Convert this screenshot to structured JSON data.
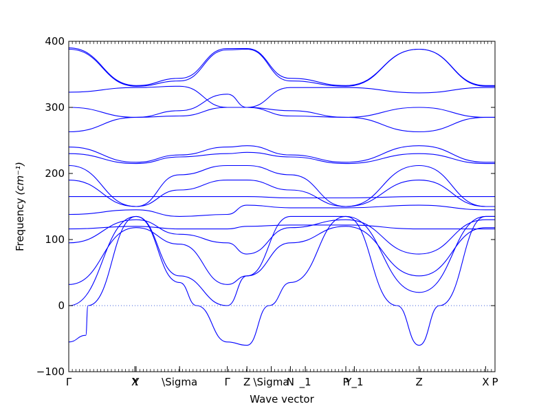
{
  "chart_data": {
    "type": "line",
    "title": "",
    "xlabel": "Wave vector",
    "ylabel": "Frequency",
    "ylabel_unit": "(cm⁻¹)",
    "ylim": [
      -100,
      400
    ],
    "yticks": [
      -100,
      0,
      100,
      200,
      300,
      400
    ],
    "grid": false,
    "zero_line": true,
    "series_color": "#0000ff",
    "high_symmetry_points": [
      {
        "label": "Γ",
        "x": 0.0
      },
      {
        "label": "X",
        "x": 0.155
      },
      {
        "label": "Y",
        "x": 0.158
      },
      {
        "label": "\\Sigma",
        "x": 0.26
      },
      {
        "label": "Γ",
        "x": 0.372
      },
      {
        "label": "Z",
        "x": 0.418
      },
      {
        "label": "\\Sigma",
        "x": 0.475
      },
      {
        "label": "N",
        "x": 0.52
      },
      {
        "label": "_1",
        "x": 0.555
      },
      {
        "label": "P",
        "x": 0.65
      },
      {
        "label": "Y_1",
        "x": 0.67
      },
      {
        "label": "Z",
        "x": 0.822
      },
      {
        "label": "X",
        "x": 0.978
      },
      {
        "label": "P",
        "x": 1.0
      }
    ],
    "segments": [
      [
        0.0,
        0.158
      ],
      [
        0.158,
        0.26
      ],
      [
        0.26,
        0.372
      ],
      [
        0.372,
        0.418
      ],
      [
        0.418,
        0.52
      ],
      [
        0.52,
        0.65
      ],
      [
        0.65,
        0.822
      ],
      [
        0.822,
        0.978
      ],
      [
        0.978,
        1.0
      ]
    ],
    "bands": [
      {
        "name": "b1",
        "values": [
          [
            0.0,
            -55
          ],
          [
            0.04,
            -45
          ],
          [
            0.045,
            0
          ],
          [
            0.158,
            135
          ],
          [
            0.26,
            35
          ],
          [
            0.3,
            0
          ],
          [
            0.372,
            -55
          ],
          [
            0.418,
            -60
          ],
          [
            0.47,
            0
          ],
          [
            0.52,
            35
          ],
          [
            0.65,
            135
          ],
          [
            0.77,
            0
          ],
          [
            0.822,
            -60
          ],
          [
            0.87,
            0
          ],
          [
            0.978,
            135
          ],
          [
            1.0,
            135
          ]
        ]
      },
      {
        "name": "b2",
        "values": [
          [
            0.0,
            0
          ],
          [
            0.158,
            135
          ],
          [
            0.26,
            45
          ],
          [
            0.372,
            0
          ],
          [
            0.418,
            45
          ],
          [
            0.52,
            135
          ],
          [
            0.65,
            135
          ],
          [
            0.822,
            20
          ],
          [
            0.978,
            135
          ],
          [
            1.0,
            135
          ]
        ]
      },
      {
        "name": "b3",
        "values": [
          [
            0.0,
            32
          ],
          [
            0.158,
            118
          ],
          [
            0.26,
            93
          ],
          [
            0.372,
            32
          ],
          [
            0.418,
            45
          ],
          [
            0.52,
            95
          ],
          [
            0.65,
            120
          ],
          [
            0.822,
            45
          ],
          [
            0.978,
            118
          ],
          [
            1.0,
            118
          ]
        ]
      },
      {
        "name": "b4",
        "values": [
          [
            0.0,
            95
          ],
          [
            0.158,
            130
          ],
          [
            0.26,
            108
          ],
          [
            0.372,
            95
          ],
          [
            0.418,
            78
          ],
          [
            0.52,
            118
          ],
          [
            0.65,
            130
          ],
          [
            0.822,
            78
          ],
          [
            0.978,
            130
          ],
          [
            1.0,
            130
          ]
        ]
      },
      {
        "name": "b5",
        "values": [
          [
            0.0,
            116
          ],
          [
            0.158,
            120
          ],
          [
            0.26,
            116
          ],
          [
            0.372,
            116
          ],
          [
            0.418,
            120
          ],
          [
            0.52,
            122
          ],
          [
            0.65,
            122
          ],
          [
            0.822,
            116
          ],
          [
            0.978,
            116
          ],
          [
            1.0,
            116
          ]
        ]
      },
      {
        "name": "b6",
        "values": [
          [
            0.0,
            138
          ],
          [
            0.158,
            145
          ],
          [
            0.26,
            135
          ],
          [
            0.372,
            138
          ],
          [
            0.418,
            152
          ],
          [
            0.52,
            148
          ],
          [
            0.65,
            148
          ],
          [
            0.822,
            152
          ],
          [
            0.978,
            145
          ],
          [
            1.0,
            145
          ]
        ]
      },
      {
        "name": "b7",
        "values": [
          [
            0.0,
            165
          ],
          [
            0.158,
            165
          ],
          [
            0.26,
            165
          ],
          [
            0.372,
            165
          ],
          [
            0.418,
            165
          ],
          [
            0.52,
            163
          ],
          [
            0.65,
            163
          ],
          [
            0.822,
            165
          ],
          [
            0.978,
            165
          ],
          [
            1.0,
            165
          ]
        ]
      },
      {
        "name": "b8",
        "values": [
          [
            0.0,
            190
          ],
          [
            0.158,
            150
          ],
          [
            0.26,
            175
          ],
          [
            0.372,
            190
          ],
          [
            0.418,
            190
          ],
          [
            0.52,
            175
          ],
          [
            0.65,
            150
          ],
          [
            0.822,
            190
          ],
          [
            0.978,
            150
          ],
          [
            1.0,
            150
          ]
        ]
      },
      {
        "name": "b9",
        "values": [
          [
            0.0,
            212
          ],
          [
            0.158,
            150
          ],
          [
            0.26,
            198
          ],
          [
            0.372,
            212
          ],
          [
            0.418,
            212
          ],
          [
            0.52,
            198
          ],
          [
            0.65,
            150
          ],
          [
            0.822,
            212
          ],
          [
            0.978,
            150
          ],
          [
            1.0,
            150
          ]
        ]
      },
      {
        "name": "b10",
        "values": [
          [
            0.0,
            230
          ],
          [
            0.158,
            215
          ],
          [
            0.26,
            225
          ],
          [
            0.372,
            230
          ],
          [
            0.418,
            232
          ],
          [
            0.52,
            225
          ],
          [
            0.65,
            215
          ],
          [
            0.822,
            230
          ],
          [
            0.978,
            215
          ],
          [
            1.0,
            215
          ]
        ]
      },
      {
        "name": "b11",
        "values": [
          [
            0.0,
            240
          ],
          [
            0.158,
            217
          ],
          [
            0.26,
            228
          ],
          [
            0.372,
            240
          ],
          [
            0.418,
            242
          ],
          [
            0.52,
            228
          ],
          [
            0.65,
            217
          ],
          [
            0.822,
            242
          ],
          [
            0.978,
            217
          ],
          [
            1.0,
            217
          ]
        ]
      },
      {
        "name": "b12",
        "values": [
          [
            0.0,
            263
          ],
          [
            0.158,
            285
          ],
          [
            0.26,
            287
          ],
          [
            0.372,
            300
          ],
          [
            0.418,
            300
          ],
          [
            0.52,
            287
          ],
          [
            0.65,
            285
          ],
          [
            0.822,
            263
          ],
          [
            0.978,
            285
          ],
          [
            1.0,
            285
          ]
        ]
      },
      {
        "name": "b13",
        "values": [
          [
            0.0,
            300
          ],
          [
            0.158,
            285
          ],
          [
            0.26,
            295
          ],
          [
            0.372,
            320
          ],
          [
            0.418,
            300
          ],
          [
            0.52,
            295
          ],
          [
            0.65,
            285
          ],
          [
            0.822,
            300
          ],
          [
            0.978,
            285
          ],
          [
            1.0,
            285
          ]
        ]
      },
      {
        "name": "b14",
        "values": [
          [
            0.0,
            323
          ],
          [
            0.158,
            330
          ],
          [
            0.26,
            332
          ],
          [
            0.372,
            300
          ],
          [
            0.418,
            300
          ],
          [
            0.52,
            330
          ],
          [
            0.65,
            330
          ],
          [
            0.822,
            322
          ],
          [
            0.978,
            330
          ],
          [
            1.0,
            330
          ]
        ]
      },
      {
        "name": "b15",
        "values": [
          [
            0.0,
            388
          ],
          [
            0.158,
            332
          ],
          [
            0.26,
            340
          ],
          [
            0.372,
            387
          ],
          [
            0.418,
            388
          ],
          [
            0.52,
            340
          ],
          [
            0.65,
            332
          ],
          [
            0.822,
            388
          ],
          [
            0.978,
            332
          ],
          [
            1.0,
            332
          ]
        ]
      },
      {
        "name": "b16",
        "values": [
          [
            0.0,
            390
          ],
          [
            0.158,
            333
          ],
          [
            0.26,
            344
          ],
          [
            0.372,
            389
          ],
          [
            0.418,
            389
          ],
          [
            0.52,
            344
          ],
          [
            0.65,
            333
          ],
          [
            0.822,
            388
          ],
          [
            0.978,
            333
          ],
          [
            1.0,
            333
          ]
        ]
      }
    ]
  }
}
